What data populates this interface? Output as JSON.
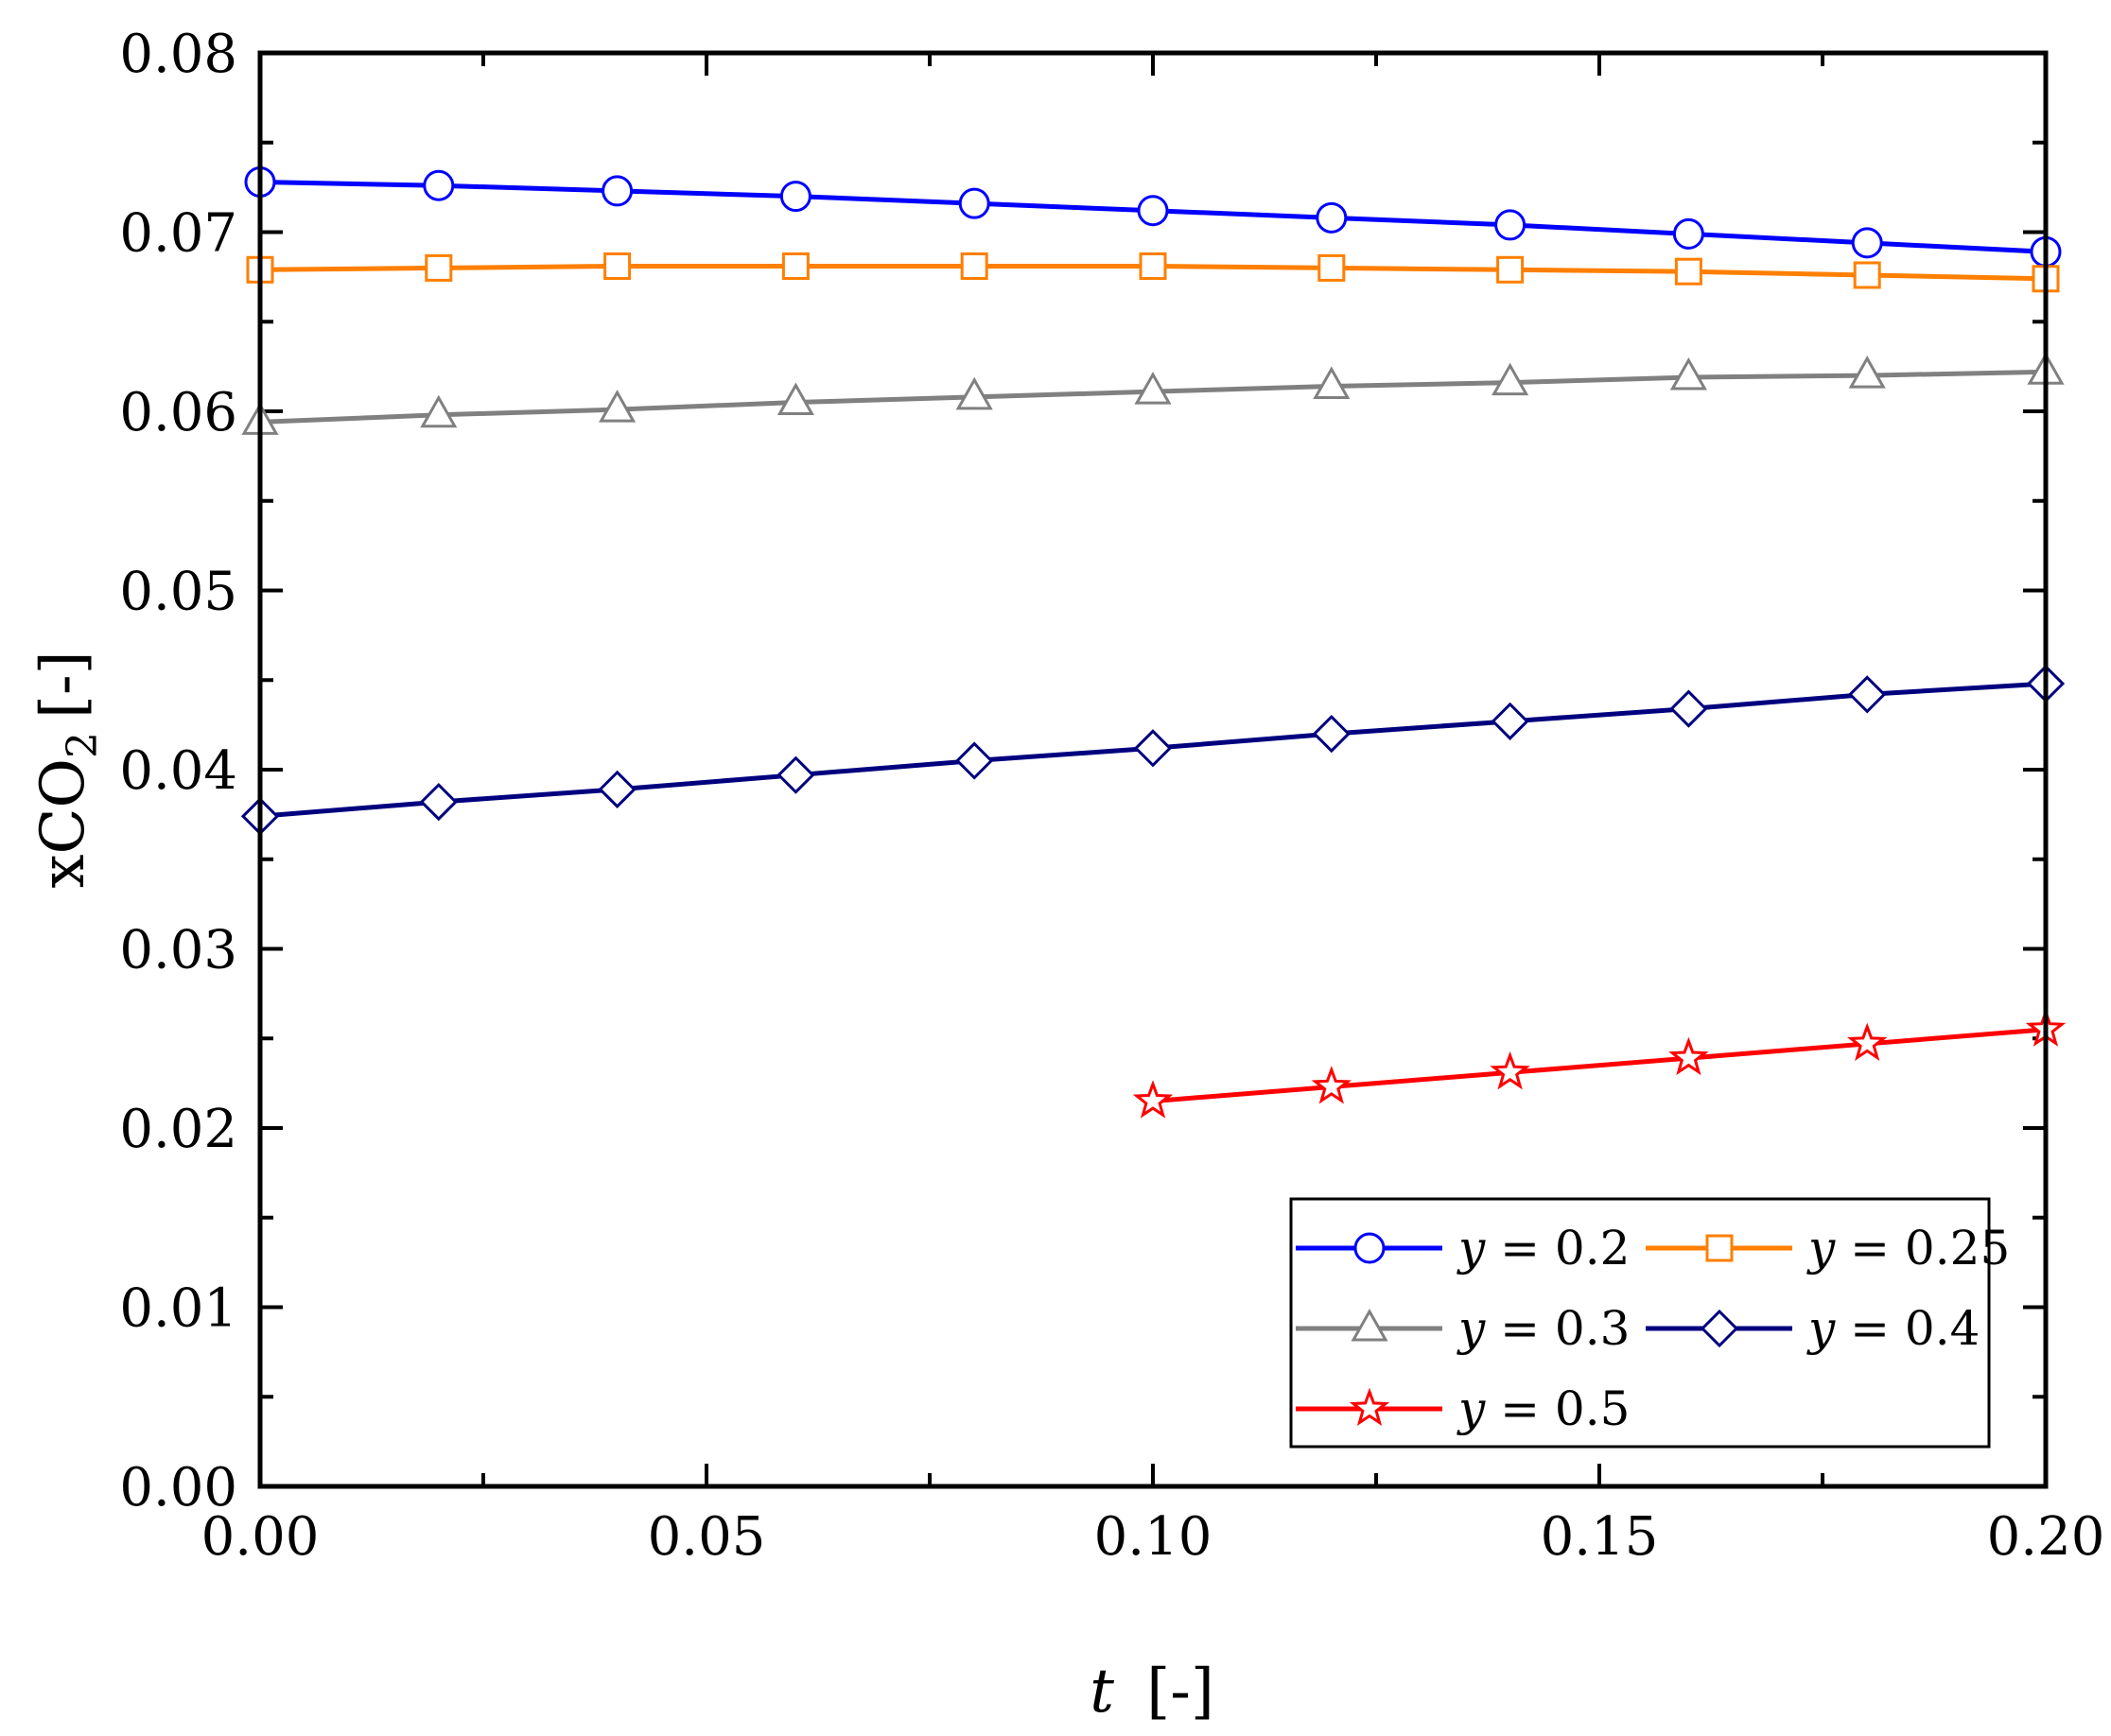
{
  "chart_data": {
    "type": "line",
    "xlabel_var": "t",
    "xlabel_unit": "[-]",
    "ylabel_prefix": "xCO",
    "ylabel_sub": "2",
    "ylabel_unit": "[-]",
    "xlim": [
      0.0,
      0.2
    ],
    "ylim": [
      0.0,
      0.08
    ],
    "xticks": [
      "0.00",
      "0.05",
      "0.10",
      "0.15",
      "0.20"
    ],
    "yticks": [
      "0.00",
      "0.01",
      "0.02",
      "0.03",
      "0.04",
      "0.05",
      "0.06",
      "0.07",
      "0.08"
    ],
    "legend_position": "bottom-right",
    "series": [
      {
        "name_var": "y",
        "name_rest": " = 0.2",
        "color": "#0000ff",
        "marker": "circle",
        "x": [
          0.0,
          0.02,
          0.04,
          0.06,
          0.08,
          0.1,
          0.12,
          0.14,
          0.16,
          0.18,
          0.2
        ],
        "y": [
          0.0728,
          0.0726,
          0.0723,
          0.072,
          0.0716,
          0.0712,
          0.0708,
          0.0704,
          0.0699,
          0.0694,
          0.0689
        ]
      },
      {
        "name_var": "y",
        "name_rest": " = 0.25",
        "color": "#ff7f00",
        "marker": "square",
        "x": [
          0.0,
          0.02,
          0.04,
          0.06,
          0.08,
          0.1,
          0.12,
          0.14,
          0.16,
          0.18,
          0.2
        ],
        "y": [
          0.0679,
          0.068,
          0.0681,
          0.0681,
          0.0681,
          0.0681,
          0.068,
          0.0679,
          0.0678,
          0.0676,
          0.0674
        ]
      },
      {
        "name_var": "y",
        "name_rest": " = 0.3",
        "color": "#808080",
        "marker": "triangle",
        "x": [
          0.0,
          0.02,
          0.04,
          0.06,
          0.08,
          0.1,
          0.12,
          0.14,
          0.16,
          0.18,
          0.2
        ],
        "y": [
          0.0594,
          0.0598,
          0.0601,
          0.0605,
          0.0608,
          0.0611,
          0.0614,
          0.0616,
          0.0619,
          0.062,
          0.0622
        ]
      },
      {
        "name_var": "y",
        "name_rest": " = 0.4",
        "color": "#00007f",
        "marker": "diamond",
        "x": [
          0.0,
          0.02,
          0.04,
          0.06,
          0.08,
          0.1,
          0.12,
          0.14,
          0.16,
          0.18,
          0.2
        ],
        "y": [
          0.0374,
          0.0382,
          0.0389,
          0.0397,
          0.0405,
          0.0412,
          0.042,
          0.0427,
          0.0434,
          0.0442,
          0.0448
        ]
      },
      {
        "name_var": "y",
        "name_rest": " = 0.5",
        "color": "#ff0000",
        "marker": "star",
        "x": [
          0.1,
          0.12,
          0.14,
          0.16,
          0.18,
          0.2
        ],
        "y": [
          0.0215,
          0.0223,
          0.0231,
          0.0239,
          0.0247,
          0.0255
        ]
      }
    ]
  }
}
